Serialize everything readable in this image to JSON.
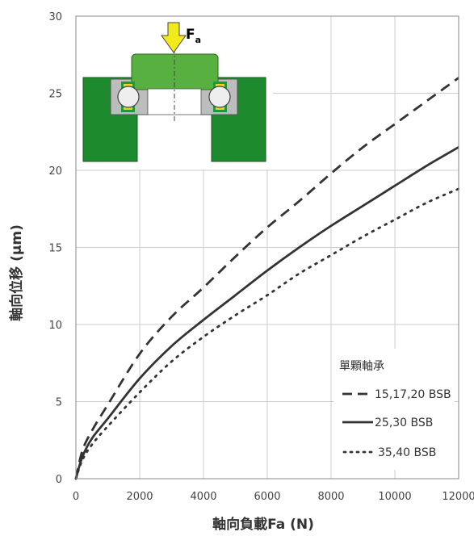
{
  "chart_data": {
    "type": "line",
    "xlabel": "軸向負載Fa (N)",
    "ylabel": "軸向位移 (μm)",
    "xlim": [
      0,
      12000
    ],
    "ylim": [
      0,
      30
    ],
    "xticks": [
      "0",
      "2000",
      "4000",
      "6000",
      "8000",
      "10000",
      "12000"
    ],
    "yticks": [
      "0",
      "5",
      "10",
      "15",
      "20",
      "25",
      "30"
    ],
    "grid": true,
    "legend_title": "單顆軸承",
    "legend_position": "lower-right",
    "series": [
      {
        "name": "15,17,20 BSB",
        "style": "dashed",
        "x": [
          0,
          200,
          500,
          1000,
          2000,
          3000,
          4000,
          5000,
          6000,
          7000,
          8000,
          9000,
          10000,
          11000,
          12000
        ],
        "y": [
          0,
          1.8,
          3.1,
          4.8,
          8.1,
          10.5,
          12.4,
          14.4,
          16.3,
          18.0,
          19.8,
          21.5,
          23.0,
          24.5,
          26.0
        ]
      },
      {
        "name": "25,30 BSB",
        "style": "solid",
        "x": [
          0,
          200,
          500,
          1000,
          2000,
          3000,
          4000,
          5000,
          6000,
          7000,
          8000,
          9000,
          10000,
          11000,
          12000
        ],
        "y": [
          0,
          1.4,
          2.6,
          3.9,
          6.5,
          8.6,
          10.3,
          11.9,
          13.5,
          15.0,
          16.4,
          17.7,
          19.0,
          20.3,
          21.5
        ]
      },
      {
        "name": "35,40 BSB",
        "style": "dotted",
        "x": [
          0,
          200,
          500,
          1000,
          2000,
          3000,
          4000,
          5000,
          6000,
          7000,
          8000,
          9000,
          10000,
          11000,
          12000
        ],
        "y": [
          0,
          1.2,
          2.2,
          3.4,
          5.6,
          7.6,
          9.2,
          10.6,
          11.9,
          13.3,
          14.5,
          15.7,
          16.8,
          17.9,
          18.8
        ]
      }
    ]
  },
  "inset": {
    "force_label": "F",
    "force_subscript": "a",
    "colors": {
      "housing": "#1e8a2e",
      "shaft": "#58b041",
      "arrow": "#f2ea1a",
      "bearing": "#bdbdbd",
      "cage": "#1e9a3a",
      "cage_inner": "#f0d020"
    }
  },
  "colors": {
    "line": "#333333",
    "grid": "#cccccc",
    "axis": "#888888"
  }
}
